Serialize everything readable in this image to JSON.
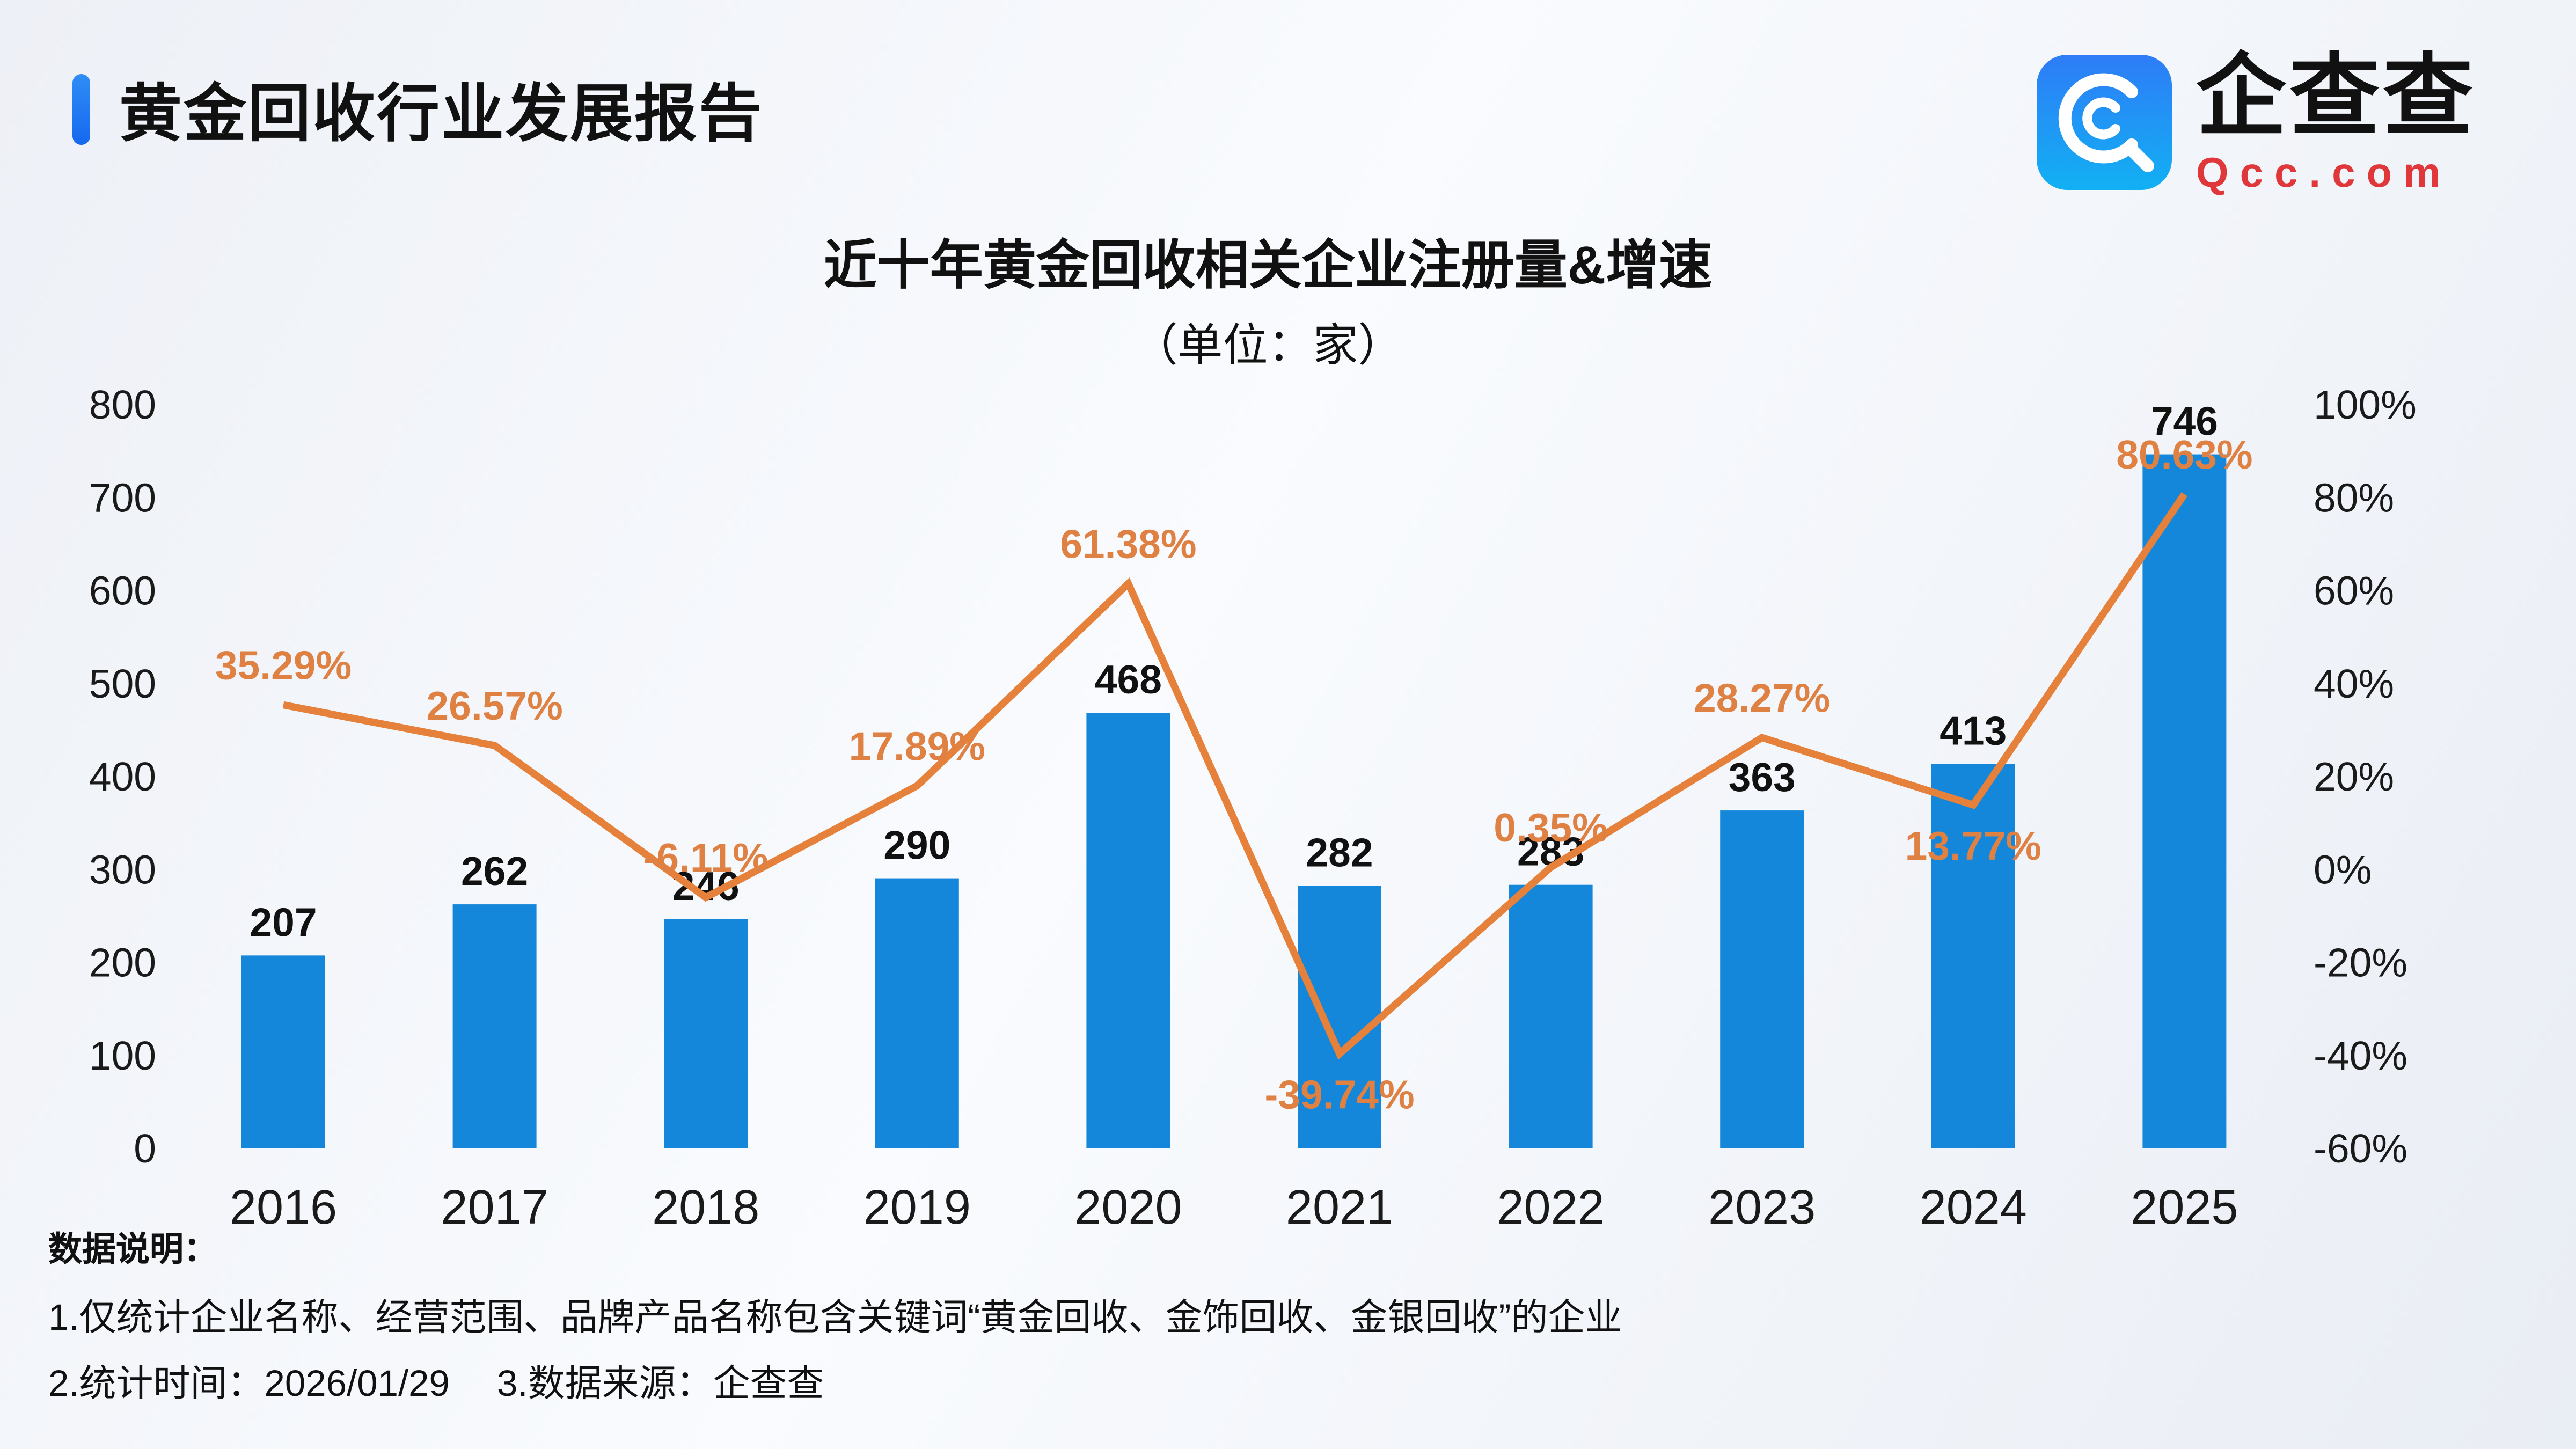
{
  "header": {
    "title": "黄金回收行业发展报告",
    "logo_name": "企查查",
    "logo_domain": "Qcc.com",
    "logo_icon": "qcc-magnifier-icon"
  },
  "chart_data": {
    "type": "combo",
    "title": "近十年黄金回收相关企业注册量&增速",
    "subtitle": "（单位：家）",
    "categories": [
      "2016",
      "2017",
      "2018",
      "2019",
      "2020",
      "2021",
      "2022",
      "2023",
      "2024",
      "2025"
    ],
    "series": [
      {
        "name": "注册量",
        "type": "bar",
        "axis": "left",
        "color": "#1487da",
        "values": [
          207,
          262,
          246,
          290,
          468,
          282,
          283,
          363,
          413,
          746
        ],
        "value_labels": [
          "207",
          "262",
          "246",
          "290",
          "468",
          "282",
          "283",
          "363",
          "413",
          "746"
        ]
      },
      {
        "name": "增速",
        "type": "line",
        "axis": "right",
        "color": "#e5813a",
        "values": [
          35.29,
          26.57,
          -6.11,
          17.89,
          61.38,
          -39.74,
          0.35,
          28.27,
          13.77,
          80.63
        ],
        "value_labels": [
          "35.29%",
          "26.57%",
          "-6.11%",
          "17.89%",
          "61.38%",
          "-39.74%",
          "0.35%",
          "28.27%",
          "13.77%",
          "80.63%"
        ],
        "label_side": [
          "above",
          "above",
          "above",
          "above",
          "above",
          "below",
          "above",
          "above",
          "below",
          "above"
        ]
      }
    ],
    "left_axis": {
      "min": 0,
      "max": 800,
      "step": 100,
      "ticks": [
        "0",
        "100",
        "200",
        "300",
        "400",
        "500",
        "600",
        "700",
        "800"
      ]
    },
    "right_axis": {
      "min": -60,
      "max": 100,
      "step": 20,
      "ticks": [
        "-60%",
        "-40%",
        "-20%",
        "0%",
        "20%",
        "40%",
        "60%",
        "80%",
        "100%"
      ]
    },
    "grid": false,
    "legend": "none"
  },
  "footer": {
    "heading": "数据说明：",
    "note1": "1.仅统计企业名称、经营范围、品牌产品名称包含关键词“黄金回收、金饰回收、金银回收”的企业",
    "note2": "2.统计时间：2026/01/29　 3.数据来源：企查查"
  },
  "colors": {
    "bar": "#1487da",
    "line": "#e5813a",
    "accent_top": "#2f8df6",
    "accent_bottom": "#1668ee",
    "logo_blue_start": "#2e7cf7",
    "logo_blue_end": "#12b0f3",
    "logo_red": "#e0383a",
    "background": "#edf0f6"
  }
}
